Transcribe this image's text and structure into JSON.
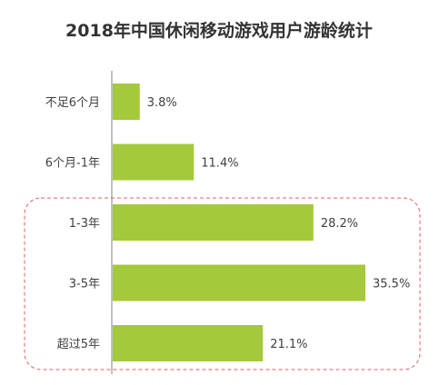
{
  "chart_data": {
    "type": "bar",
    "orientation": "horizontal",
    "title": "2018年中国休闲移动游戏用户游龄统计",
    "categories": [
      "不足6个月",
      "6个月-1年",
      "1-3年",
      "3-5年",
      "超过5年"
    ],
    "values": [
      3.8,
      11.4,
      28.2,
      35.5,
      21.1
    ],
    "value_labels": [
      "3.8%",
      "11.4%",
      "28.2%",
      "35.5%",
      "21.1%"
    ],
    "unit": "%",
    "xlim": [
      0,
      40
    ],
    "grid": false,
    "legend": "none",
    "highlight_categories": [
      "1-3年",
      "3-5年",
      "超过5年"
    ],
    "bar_color": "#a4c93c",
    "axis_color": "#808080",
    "highlight_border_color": "#e06060",
    "title_color": "#333333",
    "text_color": "#404040"
  }
}
